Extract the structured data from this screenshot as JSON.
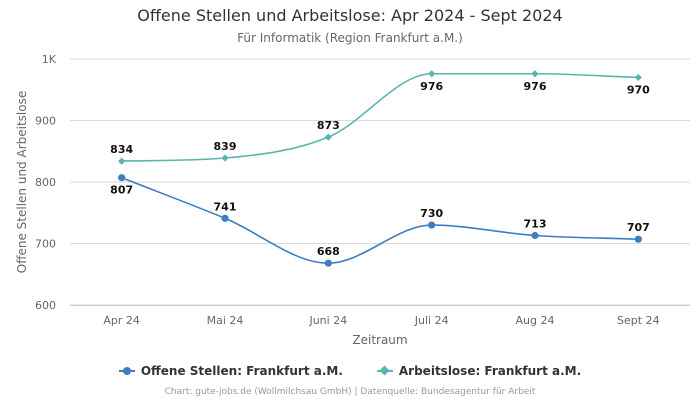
{
  "chart_data": {
    "type": "line",
    "title": "Offene Stellen und Arbeitslose: Apr 2024 - Sept 2024",
    "subtitle": "Für Informatik (Region Frankfurt a.M.)",
    "xlabel": "Zeitraum",
    "ylabel": "Offene Stellen und Arbeitslose",
    "categories": [
      "Apr 24",
      "Mai 24",
      "Juni 24",
      "Juli 24",
      "Aug 24",
      "Sept 24"
    ],
    "ylim": [
      600,
      1000
    ],
    "yticks": [
      600,
      700,
      800,
      900,
      1000
    ],
    "ytick_labels": [
      "600",
      "700",
      "800",
      "900",
      "1K"
    ],
    "grid": true,
    "legend": "bottom",
    "series": [
      {
        "name": "Offene Stellen: Frankfurt a.M.",
        "values": [
          807,
          741,
          668,
          730,
          713,
          707
        ],
        "color": "#3d7ebf",
        "marker": "circle",
        "label_pos": [
          "below",
          "above",
          "above",
          "above",
          "above",
          "above"
        ]
      },
      {
        "name": "Arbeitslose: Frankfurt a.M.",
        "values": [
          834,
          839,
          873,
          976,
          976,
          970
        ],
        "color": "#5ab5b0",
        "marker": "diamond",
        "label_pos": [
          "above",
          "above",
          "above",
          "below",
          "below",
          "below"
        ]
      }
    ],
    "credits": "Chart: gute-jobs.de (Wollmilchsau GmbH) | Datenquelle: Bundesagentur für Arbeit"
  }
}
